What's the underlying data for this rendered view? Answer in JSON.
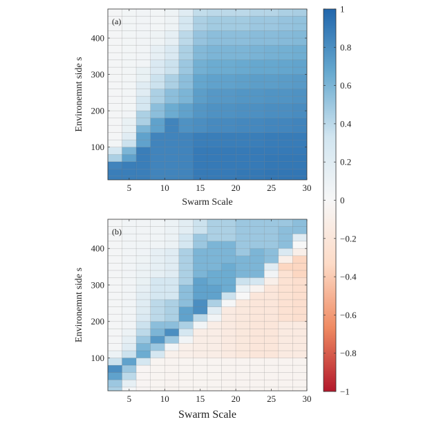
{
  "chart_data": [
    {
      "type": "heatmap",
      "panel_label": "(a)",
      "xlabel": "Swarm Scale",
      "ylabel": "Environemnt side s",
      "xlim": [
        2,
        30
      ],
      "ylim": [
        10,
        480
      ],
      "xticks": [
        5,
        10,
        15,
        20,
        25,
        30
      ],
      "yticks": [
        100,
        200,
        300,
        400
      ],
      "grid": true,
      "x_centers": [
        3,
        5,
        7,
        9,
        11,
        13,
        15,
        17,
        19,
        21,
        23,
        25,
        27,
        29
      ],
      "y_centers": [
        10,
        30,
        50,
        70,
        90,
        110,
        130,
        150,
        170,
        190,
        210,
        230,
        250,
        270,
        290,
        310,
        330,
        350,
        370,
        390,
        410,
        430,
        450,
        470
      ],
      "z_by_column": [
        [
          0.88,
          0.88,
          0.85,
          0.45,
          0.3,
          0.04,
          0.03,
          0.03,
          0.03,
          0.03,
          0.03,
          0.03,
          0.03,
          0.03,
          0.03,
          0.03,
          0.03,
          0.03,
          0.03,
          0.03,
          0.03,
          0.03,
          0.03,
          0.03
        ],
        [
          0.88,
          0.88,
          0.88,
          0.7,
          0.6,
          0.35,
          0.2,
          0.12,
          0.12,
          0.05,
          0.04,
          0.04,
          0.04,
          0.04,
          0.04,
          0.04,
          0.04,
          0.04,
          0.04,
          0.04,
          0.04,
          0.04,
          0.04,
          0.04
        ],
        [
          0.88,
          0.88,
          0.88,
          0.88,
          0.88,
          0.7,
          0.7,
          0.6,
          0.45,
          0.45,
          0.3,
          0.3,
          0.2,
          0.2,
          0.12,
          0.12,
          0.05,
          0.05,
          0.05,
          0.05,
          0.05,
          0.05,
          0.05,
          0.05
        ],
        [
          0.85,
          0.85,
          0.85,
          0.85,
          0.85,
          0.85,
          0.85,
          0.7,
          0.7,
          0.55,
          0.55,
          0.45,
          0.45,
          0.35,
          0.35,
          0.25,
          0.25,
          0.15,
          0.15,
          0.08,
          0.08,
          0.04,
          0.04,
          0.04
        ],
        [
          0.85,
          0.85,
          0.85,
          0.85,
          0.85,
          0.85,
          0.85,
          0.85,
          0.85,
          0.65,
          0.65,
          0.55,
          0.55,
          0.45,
          0.45,
          0.35,
          0.35,
          0.25,
          0.25,
          0.15,
          0.15,
          0.08,
          0.08,
          0.08
        ],
        [
          0.85,
          0.85,
          0.85,
          0.85,
          0.85,
          0.85,
          0.85,
          0.78,
          0.78,
          0.7,
          0.7,
          0.6,
          0.6,
          0.55,
          0.55,
          0.5,
          0.5,
          0.45,
          0.45,
          0.4,
          0.4,
          0.3,
          0.3,
          0.2
        ],
        [
          0.9,
          0.9,
          0.9,
          0.9,
          0.9,
          0.88,
          0.88,
          0.8,
          0.8,
          0.76,
          0.76,
          0.72,
          0.72,
          0.68,
          0.68,
          0.63,
          0.63,
          0.58,
          0.58,
          0.52,
          0.52,
          0.45,
          0.45,
          0.38
        ],
        [
          0.9,
          0.9,
          0.9,
          0.9,
          0.9,
          0.88,
          0.88,
          0.82,
          0.82,
          0.78,
          0.78,
          0.75,
          0.75,
          0.7,
          0.7,
          0.65,
          0.65,
          0.6,
          0.6,
          0.55,
          0.55,
          0.48,
          0.48,
          0.4
        ],
        [
          0.9,
          0.9,
          0.9,
          0.9,
          0.9,
          0.88,
          0.88,
          0.82,
          0.82,
          0.78,
          0.78,
          0.75,
          0.75,
          0.7,
          0.7,
          0.65,
          0.65,
          0.6,
          0.6,
          0.55,
          0.55,
          0.48,
          0.48,
          0.4
        ],
        [
          0.91,
          0.91,
          0.9,
          0.9,
          0.9,
          0.88,
          0.88,
          0.83,
          0.83,
          0.79,
          0.79,
          0.76,
          0.76,
          0.71,
          0.71,
          0.66,
          0.66,
          0.6,
          0.6,
          0.55,
          0.55,
          0.48,
          0.48,
          0.4
        ],
        [
          0.91,
          0.91,
          0.9,
          0.9,
          0.9,
          0.88,
          0.88,
          0.83,
          0.83,
          0.79,
          0.79,
          0.76,
          0.76,
          0.72,
          0.72,
          0.67,
          0.67,
          0.61,
          0.61,
          0.56,
          0.56,
          0.5,
          0.5,
          0.42
        ],
        [
          0.92,
          0.92,
          0.91,
          0.91,
          0.9,
          0.89,
          0.89,
          0.84,
          0.84,
          0.8,
          0.8,
          0.77,
          0.77,
          0.72,
          0.72,
          0.67,
          0.67,
          0.62,
          0.62,
          0.56,
          0.56,
          0.5,
          0.5,
          0.42
        ],
        [
          0.92,
          0.92,
          0.91,
          0.91,
          0.9,
          0.89,
          0.89,
          0.84,
          0.84,
          0.8,
          0.8,
          0.77,
          0.77,
          0.73,
          0.73,
          0.68,
          0.68,
          0.63,
          0.63,
          0.57,
          0.57,
          0.52,
          0.52,
          0.45
        ],
        [
          0.92,
          0.92,
          0.91,
          0.91,
          0.9,
          0.89,
          0.89,
          0.85,
          0.85,
          0.81,
          0.81,
          0.78,
          0.78,
          0.74,
          0.74,
          0.69,
          0.69,
          0.64,
          0.64,
          0.58,
          0.58,
          0.53,
          0.53,
          0.46
        ]
      ]
    },
    {
      "type": "heatmap",
      "panel_label": "(b)",
      "xlabel": "Swarm Scale",
      "ylabel": "Environemnt side s",
      "xlim": [
        2,
        30
      ],
      "ylim": [
        10,
        480
      ],
      "xticks": [
        5,
        10,
        15,
        20,
        25,
        30
      ],
      "yticks": [
        100,
        200,
        300,
        400
      ],
      "grid": true,
      "x_centers": [
        3,
        5,
        7,
        9,
        11,
        13,
        15,
        17,
        19,
        21,
        23,
        25,
        27,
        29
      ],
      "y_centers": [
        10,
        30,
        50,
        70,
        90,
        110,
        130,
        150,
        170,
        190,
        210,
        230,
        250,
        270,
        290,
        310,
        330,
        350,
        370,
        390,
        410,
        430,
        450,
        470
      ],
      "z_by_column": [
        [
          0.45,
          0.5,
          0.7,
          0.8,
          0.35,
          0.1,
          0.03,
          0.03,
          0.03,
          0.03,
          0.03,
          0.03,
          0.03,
          0.03,
          0.03,
          0.03,
          0.03,
          0.03,
          0.03,
          0.03,
          0.03,
          0.03,
          0.03,
          0.03
        ],
        [
          0.02,
          0.15,
          0.4,
          0.5,
          0.7,
          0.35,
          0.2,
          0.15,
          0.1,
          0.05,
          0.05,
          0.05,
          0.05,
          0.05,
          0.05,
          0.05,
          0.05,
          0.05,
          0.05,
          0.05,
          0.05,
          0.05,
          0.05,
          0.05
        ],
        [
          -0.03,
          -0.03,
          -0.03,
          -0.03,
          0.3,
          0.65,
          0.6,
          0.5,
          0.4,
          0.35,
          0.25,
          0.22,
          0.2,
          0.18,
          0.15,
          0.12,
          0.1,
          0.1,
          0.08,
          0.07,
          0.06,
          0.05,
          0.05,
          0.05
        ],
        [
          -0.04,
          -0.04,
          -0.04,
          -0.04,
          -0.04,
          0.3,
          0.5,
          0.75,
          0.6,
          0.55,
          0.4,
          0.4,
          0.4,
          0.3,
          0.3,
          0.3,
          0.15,
          0.15,
          0.15,
          0.15,
          0.06,
          0.06,
          0.06,
          0.06
        ],
        [
          -0.05,
          -0.05,
          -0.05,
          -0.05,
          -0.05,
          -0.08,
          0.05,
          0.5,
          0.8,
          0.55,
          0.45,
          0.45,
          0.45,
          0.3,
          0.3,
          0.3,
          0.2,
          0.2,
          0.2,
          0.2,
          0.1,
          0.1,
          0.1,
          0.1
        ],
        [
          -0.04,
          -0.04,
          -0.04,
          -0.04,
          -0.04,
          -0.1,
          -0.1,
          0.05,
          0.3,
          0.45,
          0.7,
          0.7,
          0.55,
          0.55,
          0.55,
          0.45,
          0.45,
          0.45,
          0.45,
          0.45,
          0.3,
          0.3,
          0.18,
          0.18
        ],
        [
          -0.04,
          -0.04,
          -0.04,
          -0.04,
          -0.04,
          -0.12,
          -0.12,
          -0.12,
          -0.12,
          0.05,
          0.4,
          0.8,
          0.8,
          0.7,
          0.7,
          0.7,
          0.6,
          0.6,
          0.6,
          0.6,
          0.5,
          0.5,
          0.35,
          0.35
        ],
        [
          -0.04,
          -0.04,
          -0.04,
          -0.04,
          -0.04,
          -0.12,
          -0.12,
          -0.12,
          -0.12,
          -0.12,
          0.05,
          0.2,
          0.45,
          0.7,
          0.7,
          0.65,
          0.65,
          0.6,
          0.6,
          0.6,
          0.6,
          0.45,
          0.45,
          0.45
        ],
        [
          -0.05,
          -0.05,
          -0.05,
          -0.05,
          -0.05,
          -0.15,
          -0.15,
          -0.15,
          -0.15,
          -0.15,
          -0.15,
          -0.15,
          0.02,
          0.35,
          0.65,
          0.65,
          0.65,
          0.65,
          0.6,
          0.6,
          0.6,
          0.45,
          0.45,
          0.45
        ],
        [
          -0.05,
          -0.05,
          -0.05,
          -0.05,
          -0.05,
          -0.18,
          -0.18,
          -0.18,
          -0.18,
          -0.18,
          -0.18,
          -0.18,
          -0.18,
          0.0,
          0.1,
          0.35,
          0.6,
          0.6,
          0.6,
          0.5,
          0.5,
          0.5,
          0.5,
          0.5
        ],
        [
          -0.05,
          -0.05,
          -0.05,
          -0.05,
          -0.05,
          -0.2,
          -0.2,
          -0.2,
          -0.2,
          -0.2,
          -0.2,
          -0.2,
          -0.2,
          -0.2,
          -0.05,
          0.3,
          0.6,
          0.6,
          0.6,
          0.6,
          0.5,
          0.5,
          0.5,
          0.5
        ],
        [
          -0.05,
          -0.05,
          -0.05,
          -0.05,
          -0.05,
          -0.2,
          -0.2,
          -0.2,
          -0.2,
          -0.2,
          -0.2,
          -0.2,
          -0.2,
          -0.2,
          -0.2,
          -0.1,
          0.05,
          0.2,
          0.55,
          0.55,
          0.5,
          0.5,
          0.5,
          0.5
        ],
        [
          -0.05,
          -0.05,
          -0.05,
          -0.05,
          -0.05,
          -0.15,
          -0.15,
          -0.15,
          -0.15,
          -0.15,
          -0.25,
          -0.25,
          -0.25,
          -0.25,
          -0.25,
          -0.25,
          -0.25,
          -0.35,
          -0.1,
          0.25,
          0.55,
          0.55,
          0.55,
          0.5
        ],
        [
          -0.05,
          -0.05,
          -0.05,
          -0.05,
          -0.05,
          -0.15,
          -0.15,
          -0.15,
          -0.15,
          -0.15,
          -0.28,
          -0.28,
          -0.28,
          -0.28,
          -0.28,
          -0.28,
          -0.35,
          -0.35,
          -0.35,
          -0.1,
          0.0,
          0.2,
          0.55,
          0.55
        ]
      ]
    }
  ],
  "colorbar": {
    "range": [
      -1,
      1
    ],
    "ticks": [
      "1",
      "0.8",
      "0.6",
      "0.4",
      "0.2",
      "0",
      "−0.2",
      "−0.4",
      "−0.6",
      "−0.8",
      "−1"
    ],
    "tick_values": [
      1,
      0.8,
      0.6,
      0.4,
      0.2,
      0,
      -0.2,
      -0.4,
      -0.6,
      -0.8,
      -1
    ],
    "colors": {
      "-1": "#b2182b",
      "-0.667": "#ef8a62",
      "-0.333": "#fddbc7",
      "0": "#f7f7f7",
      "0.333": "#d1e5f0",
      "0.667": "#67a9cf",
      "1": "#2166ac"
    }
  }
}
